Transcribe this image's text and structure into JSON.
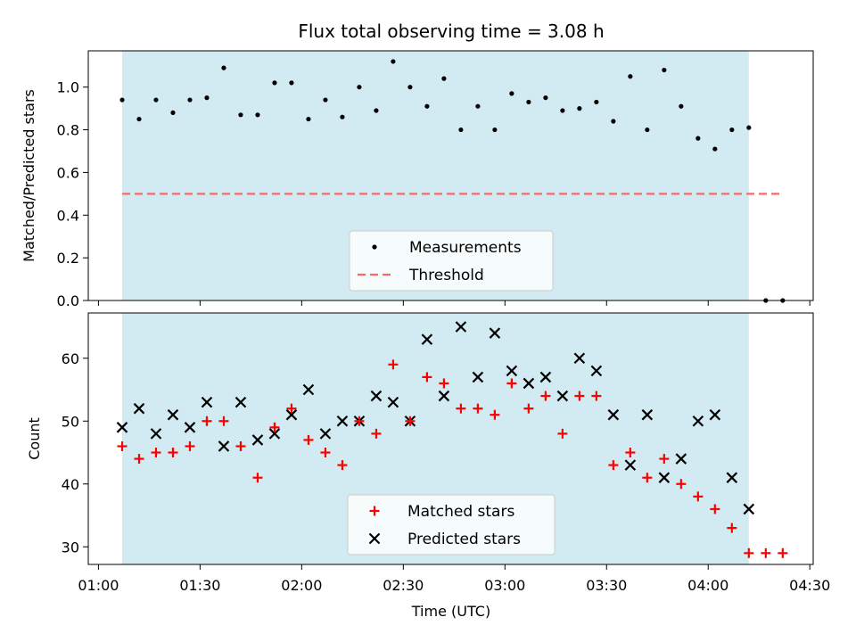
{
  "title": "Flux total observing time = 3.08 h",
  "colors": {
    "band": "#add8e6",
    "measurement": "#000000",
    "threshold": "#ff6666",
    "matched": "#ff0000",
    "predicted": "#000000"
  },
  "chart_data": [
    {
      "type": "scatter",
      "ylabel": "Matched/Predicted stars",
      "ylim": [
        0.0,
        1.17
      ],
      "yticks": [
        "0.0",
        "0.2",
        "0.4",
        "0.6",
        "0.8",
        "1.0"
      ],
      "xlim_minutes_utc": [
        57,
        271
      ],
      "observing_band": [
        "01:07",
        "04:12"
      ],
      "legend": {
        "position": "lower center",
        "measurements_label": "Measurements",
        "threshold_label": "Threshold"
      },
      "threshold": {
        "value": 0.5,
        "x_start": "01:07",
        "x_end": "04:22"
      },
      "series": [
        {
          "name": "Measurements",
          "x": [
            "01:07",
            "01:12",
            "01:17",
            "01:22",
            "01:27",
            "01:32",
            "01:37",
            "01:42",
            "01:47",
            "01:52",
            "01:57",
            "02:02",
            "02:07",
            "02:12",
            "02:17",
            "02:22",
            "02:27",
            "02:32",
            "02:37",
            "02:42",
            "02:47",
            "02:52",
            "02:57",
            "03:02",
            "03:07",
            "03:12",
            "03:17",
            "03:22",
            "03:27",
            "03:32",
            "03:37",
            "03:42",
            "03:47",
            "03:52",
            "03:57",
            "04:02",
            "04:07",
            "04:12",
            "04:17",
            "04:22"
          ],
          "y": [
            0.94,
            0.85,
            0.94,
            0.88,
            0.94,
            0.95,
            1.09,
            0.87,
            0.87,
            1.02,
            1.02,
            0.85,
            0.94,
            0.86,
            1.0,
            0.89,
            1.12,
            1.0,
            0.91,
            1.04,
            0.8,
            0.91,
            0.8,
            0.97,
            0.93,
            0.95,
            0.89,
            0.9,
            0.93,
            0.84,
            1.05,
            0.8,
            1.08,
            0.91,
            0.76,
            0.71,
            0.8,
            0.81,
            0.0,
            0.0
          ]
        }
      ]
    },
    {
      "type": "scatter",
      "xlabel": "Time (UTC)",
      "ylabel": "Count",
      "ylim": [
        27.2,
        67.2
      ],
      "yticks": [
        "30",
        "40",
        "50",
        "60"
      ],
      "xticks": [
        "01:00",
        "01:30",
        "02:00",
        "02:30",
        "03:00",
        "03:30",
        "04:00",
        "04:30"
      ],
      "xlim_minutes_utc": [
        57,
        271
      ],
      "observing_band": [
        "01:07",
        "04:12"
      ],
      "legend": {
        "position": "lower center",
        "matched_label": "Matched stars",
        "predicted_label": "Predicted stars"
      },
      "series": [
        {
          "name": "Matched stars",
          "x": [
            "01:07",
            "01:12",
            "01:17",
            "01:22",
            "01:27",
            "01:32",
            "01:37",
            "01:42",
            "01:47",
            "01:52",
            "01:57",
            "02:02",
            "02:07",
            "02:12",
            "02:17",
            "02:22",
            "02:27",
            "02:32",
            "02:37",
            "02:42",
            "02:47",
            "02:52",
            "02:57",
            "03:02",
            "03:07",
            "03:12",
            "03:17",
            "03:22",
            "03:27",
            "03:32",
            "03:37",
            "03:42",
            "03:47",
            "03:52",
            "03:57",
            "04:02",
            "04:07",
            "04:12",
            "04:17",
            "04:22"
          ],
          "y": [
            46,
            44,
            45,
            45,
            46,
            50,
            50,
            46,
            41,
            49,
            52,
            47,
            45,
            43,
            50,
            48,
            59,
            50,
            57,
            56,
            52,
            52,
            51,
            56,
            52,
            54,
            48,
            54,
            54,
            43,
            45,
            41,
            44,
            40,
            38,
            36,
            33,
            29,
            29,
            29
          ]
        },
        {
          "name": "Predicted stars",
          "x": [
            "01:07",
            "01:12",
            "01:17",
            "01:22",
            "01:27",
            "01:32",
            "01:37",
            "01:42",
            "01:47",
            "01:52",
            "01:57",
            "02:02",
            "02:07",
            "02:12",
            "02:17",
            "02:22",
            "02:27",
            "02:32",
            "02:37",
            "02:42",
            "02:47",
            "02:52",
            "02:57",
            "03:02",
            "03:07",
            "03:12",
            "03:17",
            "03:22",
            "03:27",
            "03:32",
            "03:37",
            "03:42",
            "03:47",
            "03:52",
            "03:57",
            "04:02",
            "04:07",
            "04:12"
          ],
          "y": [
            49,
            52,
            48,
            51,
            49,
            53,
            46,
            53,
            47,
            48,
            51,
            55,
            48,
            50,
            50,
            54,
            53,
            50,
            63,
            54,
            65,
            57,
            64,
            58,
            56,
            57,
            54,
            60,
            58,
            51,
            43,
            51,
            41,
            44,
            50,
            51,
            41,
            36
          ]
        }
      ]
    }
  ]
}
